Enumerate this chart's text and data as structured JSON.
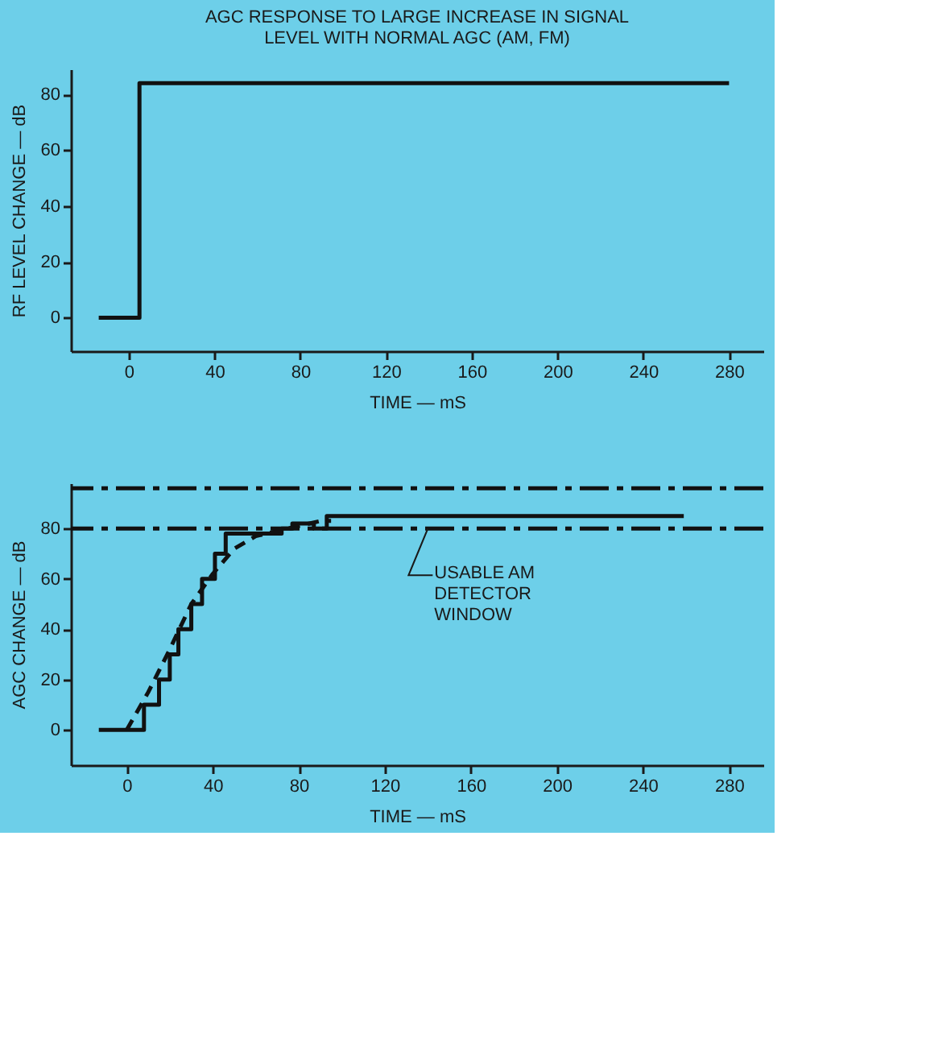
{
  "chart_data": [
    {
      "type": "step",
      "title": "AGC RESPONSE TO LARGE INCREASE IN SIGNAL LEVEL WITH NORMAL AGC (AM, FM)",
      "xlabel": "TIME — mS",
      "ylabel": "RF LEVEL CHANGE — dB",
      "x": [
        -14,
        5,
        280
      ],
      "values": [
        0,
        84,
        84
      ],
      "color": "#111111",
      "xlim": [
        -27,
        296
      ],
      "ylim": [
        -12,
        89
      ],
      "xticks": [
        0,
        40,
        80,
        120,
        160,
        200,
        240,
        280
      ],
      "yticks": [
        0,
        20,
        40,
        60,
        80
      ],
      "grid": false
    },
    {
      "type": "step",
      "xlabel": "TIME — mS",
      "ylabel": "AGC CHANGE — dB",
      "series": [
        {
          "type": "step",
          "color": "#111111",
          "x": [
            -13,
            8,
            15,
            20,
            24,
            30,
            35,
            41,
            46,
            72,
            77,
            87,
            93,
            259
          ],
          "values": [
            0,
            10,
            20,
            30,
            40,
            50,
            60,
            70,
            78,
            80,
            82,
            80,
            85,
            85
          ]
        },
        {
          "type": "line",
          "line_style": "dashed",
          "color": "#111111",
          "x": [
            0,
            10,
            20,
            30,
            40,
            50,
            60,
            70,
            80,
            90,
            95
          ],
          "values": [
            0,
            15,
            32,
            50,
            62,
            72,
            77,
            79,
            81,
            83,
            83
          ]
        }
      ],
      "ref_lines": [
        {
          "axis": "y",
          "value": 96,
          "line_style": "dashed",
          "color": "#111111"
        },
        {
          "axis": "y",
          "value": 80,
          "line_style": "dashed",
          "color": "#111111"
        }
      ],
      "annotations": [
        {
          "text": "USABLE AM DETECTOR WINDOW",
          "x": 140,
          "y": 80
        }
      ],
      "xlim": [
        -26,
        296
      ],
      "ylim": [
        -14,
        98
      ],
      "xticks": [
        0,
        40,
        80,
        120,
        160,
        200,
        240,
        280
      ],
      "yticks": [
        0,
        20,
        40,
        60,
        80
      ],
      "grid": false
    }
  ]
}
